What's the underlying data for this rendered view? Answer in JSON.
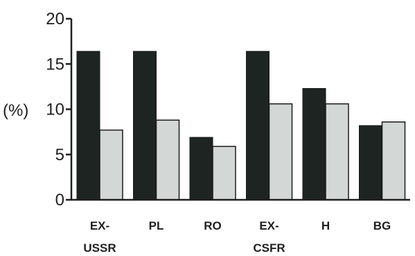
{
  "chart_data": {
    "type": "bar",
    "ylabel": "(%)",
    "xlabel": "",
    "title": "",
    "ylim": [
      0,
      20
    ],
    "yticks": [
      "0",
      "5",
      "10",
      "15",
      "20"
    ],
    "categories": [
      {
        "line1": "EX-",
        "line2": "USSR"
      },
      {
        "line1": "PL",
        "line2": ""
      },
      {
        "line1": "RO",
        "line2": ""
      },
      {
        "line1": "EX-",
        "line2": "CSFR"
      },
      {
        "line1": "H",
        "line2": ""
      },
      {
        "line1": "BG",
        "line2": ""
      }
    ],
    "series": [
      {
        "values": [
          16.4,
          16.4,
          6.9,
          16.4,
          12.3,
          8.2
        ],
        "color": "#1e2421"
      },
      {
        "values": [
          7.7,
          8.8,
          5.9,
          10.6,
          10.6,
          8.6
        ],
        "color": "#d3d7d5"
      }
    ],
    "grid": false,
    "legend": "none"
  }
}
